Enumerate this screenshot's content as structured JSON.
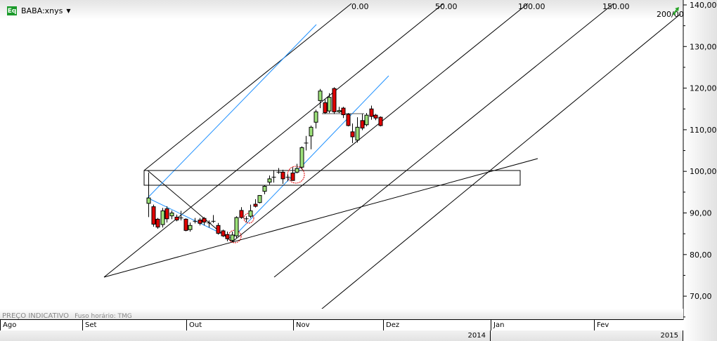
{
  "header": {
    "symbol_badge": "Eq",
    "symbol": "BABA:xnys",
    "dropdown_icon": "caret-down-icon"
  },
  "footer": {
    "price_note": "PREÇO INDICATIVO",
    "timezone": "Fuso horário: TMG"
  },
  "months": [
    "Ago",
    "Set",
    "Out",
    "Nov",
    "Dez",
    "Jan",
    "Fev"
  ],
  "years": [
    "2014",
    "2015"
  ],
  "fan_labels": [
    "0.00",
    "50.00",
    "100.00",
    "150.00",
    "200/00"
  ],
  "colors": {
    "up": "#9de27a",
    "down": "#e00000",
    "blue_line": "#1e90ff",
    "circle": "#e00000"
  },
  "chart_data": {
    "type": "candlestick",
    "yaxis": {
      "range": [
        62,
        141
      ],
      "ticks": [
        "140,00",
        "130,00",
        "120,00",
        "110,00",
        "100,00",
        "90,00",
        "80,00",
        "70,00"
      ],
      "tick_values": [
        140,
        130,
        120,
        110,
        100,
        90,
        80,
        70
      ],
      "side": "right"
    },
    "ohlc": [
      [
        92.3,
        99.7,
        89,
        93.6
      ],
      [
        91.5,
        92,
        86.7,
        87.3
      ],
      [
        88.5,
        88.8,
        86.2,
        86.6
      ],
      [
        87.2,
        91.2,
        86.5,
        90.5
      ],
      [
        91,
        91.6,
        87.7,
        88.6
      ],
      [
        89.3,
        90.6,
        88.5,
        90
      ],
      [
        89,
        89.6,
        88,
        88.3
      ],
      [
        88.8,
        90.5,
        88.2,
        88.8
      ],
      [
        88.5,
        88.7,
        85.6,
        85.8
      ],
      [
        86,
        87.7,
        85.5,
        87
      ],
      [
        88,
        88.8,
        87.5,
        88
      ],
      [
        88.3,
        88.8,
        87,
        87.5
      ],
      [
        88.7,
        89,
        87,
        87.8
      ],
      [
        87.6,
        88.2,
        86.5,
        87.5
      ],
      [
        88,
        89.5,
        87.6,
        88
      ],
      [
        87,
        87.6,
        84.8,
        85.1
      ],
      [
        85.7,
        86,
        84.2,
        84.5
      ],
      [
        84.8,
        85.5,
        83.2,
        83.8
      ],
      [
        83.4,
        85.5,
        83,
        84.7
      ],
      [
        84.5,
        89.2,
        84,
        88.9
      ],
      [
        90.6,
        91.4,
        88.6,
        88.9
      ],
      [
        88.6,
        89.2,
        87.8,
        88.5
      ],
      [
        89.2,
        92,
        88.8,
        90.5
      ],
      [
        92.1,
        93.3,
        91.3,
        91.6
      ],
      [
        92.5,
        94.3,
        92.3,
        94.2
      ],
      [
        95.2,
        96.7,
        94.5,
        96.4
      ],
      [
        97.4,
        99,
        96.8,
        98.2
      ],
      [
        98.6,
        100.3,
        97.3,
        98.6
      ],
      [
        99.7,
        100.8,
        99.4,
        99.8
      ],
      [
        99.8,
        100.4,
        97,
        98.2
      ],
      [
        98.6,
        99.3,
        97.6,
        98.6
      ],
      [
        99.6,
        101,
        97.8,
        97.8
      ],
      [
        99.8,
        101.8,
        99.5,
        100.7
      ],
      [
        101,
        106,
        100.5,
        105.7
      ],
      [
        106.7,
        108.5,
        105,
        106.8
      ],
      [
        108.5,
        111,
        105.3,
        110.6
      ],
      [
        111.8,
        114.8,
        110.3,
        114.3
      ],
      [
        117,
        119.8,
        115.2,
        119.3
      ],
      [
        116.5,
        117.3,
        113.8,
        114.1
      ],
      [
        114.5,
        118.8,
        114,
        117.8
      ],
      [
        119.9,
        120.2,
        113.8,
        114.3
      ],
      [
        114.3,
        115.5,
        114,
        114.6
      ],
      [
        115.2,
        115.5,
        112.8,
        113.6
      ],
      [
        113.7,
        114,
        110.8,
        111
      ],
      [
        109.5,
        111.5,
        106.8,
        108.3
      ],
      [
        107.5,
        113,
        106.9,
        110.6
      ],
      [
        112.2,
        113.8,
        109.9,
        110.4
      ],
      [
        111.2,
        114,
        110.8,
        113.5
      ],
      [
        115,
        115.8,
        112.4,
        113.2
      ],
      [
        113.5,
        113.8,
        112.3,
        112.8
      ],
      [
        113,
        113.2,
        110.8,
        111
      ]
    ]
  }
}
